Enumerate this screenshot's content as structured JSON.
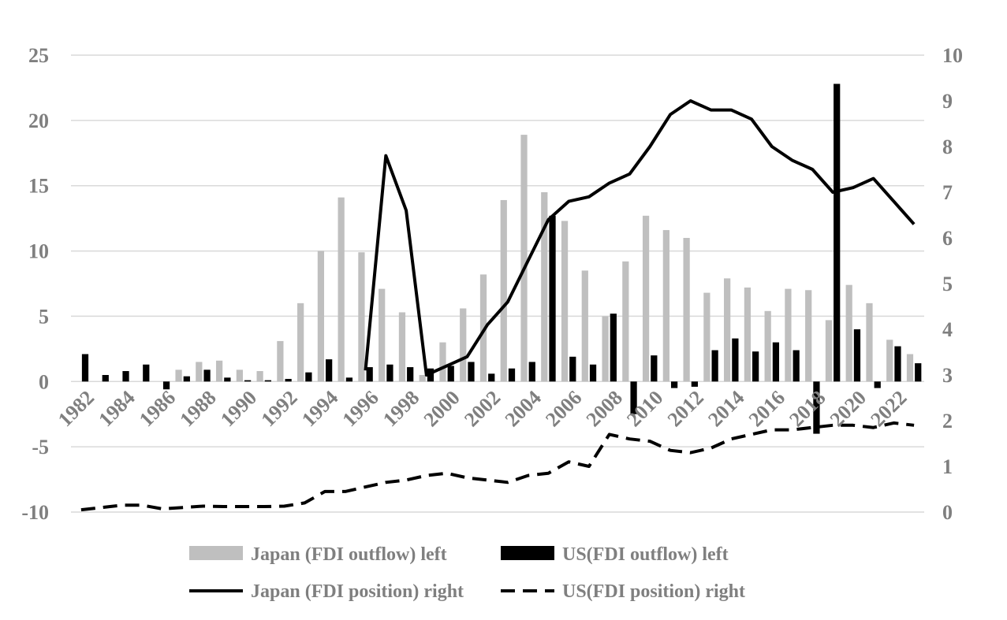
{
  "chart_data": {
    "type": "bar",
    "title": "",
    "xlabel": "",
    "ylabel": "",
    "ylim": [
      -10,
      25
    ],
    "y2lim": [
      0,
      10
    ],
    "yticks": [
      "-10",
      "-5",
      "0",
      "5",
      "10",
      "15",
      "20",
      "25"
    ],
    "y2ticks": [
      "0",
      "1",
      "2",
      "3",
      "4",
      "5",
      "6",
      "7",
      "8",
      "9",
      "10"
    ],
    "grid": true,
    "legend_position": "bottom",
    "categories": [
      "1982",
      "1983",
      "1984",
      "1985",
      "1986",
      "1987",
      "1988",
      "1989",
      "1990",
      "1991",
      "1992",
      "1993",
      "1994",
      "1995",
      "1996",
      "1997",
      "1998",
      "1999",
      "2000",
      "2001",
      "2002",
      "2003",
      "2004",
      "2005",
      "2006",
      "2007",
      "2008",
      "2009",
      "2010",
      "2011",
      "2012",
      "2013",
      "2014",
      "2015",
      "2016",
      "2017",
      "2018",
      "2019",
      "2020",
      "2021",
      "2022",
      "2023"
    ],
    "xtick_labels": [
      "1982",
      "1984",
      "1986",
      "1988",
      "1990",
      "1992",
      "1994",
      "1996",
      "1998",
      "2000",
      "2002",
      "2004",
      "2006",
      "2008",
      "2010",
      "2012",
      "2014",
      "2016",
      "2018",
      "2020",
      "2022"
    ],
    "series": [
      {
        "name": "Japan (FDI outflow) left",
        "kind": "bar",
        "axis": "left",
        "color": "#bfbfbf",
        "values": [
          0,
          0,
          0,
          0,
          0,
          0.9,
          1.5,
          1.6,
          0.9,
          0.8,
          3.1,
          6.0,
          10.0,
          14.1,
          9.9,
          7.1,
          5.3,
          0.5,
          3.0,
          5.6,
          8.2,
          13.9,
          18.9,
          14.5,
          12.3,
          8.5,
          5.0,
          9.2,
          12.7,
          11.6,
          11.0,
          6.8,
          7.9,
          7.2,
          5.4,
          7.1,
          7.0,
          4.7,
          7.4,
          6.0,
          3.2,
          2.1
        ]
      },
      {
        "name": "US(FDI outflow) left",
        "kind": "bar",
        "axis": "left",
        "color": "#000000",
        "values": [
          2.1,
          0.5,
          0.8,
          1.3,
          -0.6,
          0.4,
          0.9,
          0.3,
          0.1,
          0.1,
          0.2,
          0.7,
          1.7,
          0.3,
          1.1,
          1.3,
          1.1,
          1.0,
          1.2,
          1.5,
          0.6,
          1.0,
          1.5,
          12.7,
          1.9,
          1.3,
          5.2,
          -2.5,
          2.0,
          -0.5,
          -0.4,
          2.4,
          3.3,
          2.3,
          3.0,
          2.4,
          -4.0,
          22.8,
          4.0,
          -0.5,
          2.7,
          1.4
        ]
      },
      {
        "name": "Japan (FDI position) right",
        "kind": "line",
        "axis": "right",
        "color": "#000000",
        "dash": "solid",
        "values": [
          null,
          null,
          null,
          null,
          null,
          null,
          null,
          null,
          null,
          null,
          null,
          null,
          null,
          null,
          3.1,
          7.8,
          6.6,
          3.0,
          3.2,
          3.4,
          4.1,
          4.6,
          5.5,
          6.4,
          6.8,
          6.9,
          7.2,
          7.4,
          8.0,
          8.7,
          9.0,
          8.8,
          8.8,
          8.6,
          8.0,
          7.7,
          7.5,
          7.0,
          7.1,
          7.3,
          6.8,
          6.3
        ]
      },
      {
        "name": "US(FDI position) right",
        "kind": "line",
        "axis": "right",
        "color": "#000000",
        "dash": "dashed",
        "values": [
          0.05,
          0.1,
          0.15,
          0.15,
          0.07,
          0.1,
          0.13,
          0.12,
          0.12,
          0.12,
          0.13,
          0.2,
          0.45,
          0.45,
          0.55,
          0.65,
          0.7,
          0.8,
          0.85,
          0.75,
          0.7,
          0.65,
          0.8,
          0.85,
          1.1,
          1.0,
          1.7,
          1.6,
          1.55,
          1.35,
          1.3,
          1.4,
          1.6,
          1.7,
          1.8,
          1.8,
          1.85,
          1.9,
          1.9,
          1.85,
          1.95,
          1.9
        ]
      }
    ]
  }
}
